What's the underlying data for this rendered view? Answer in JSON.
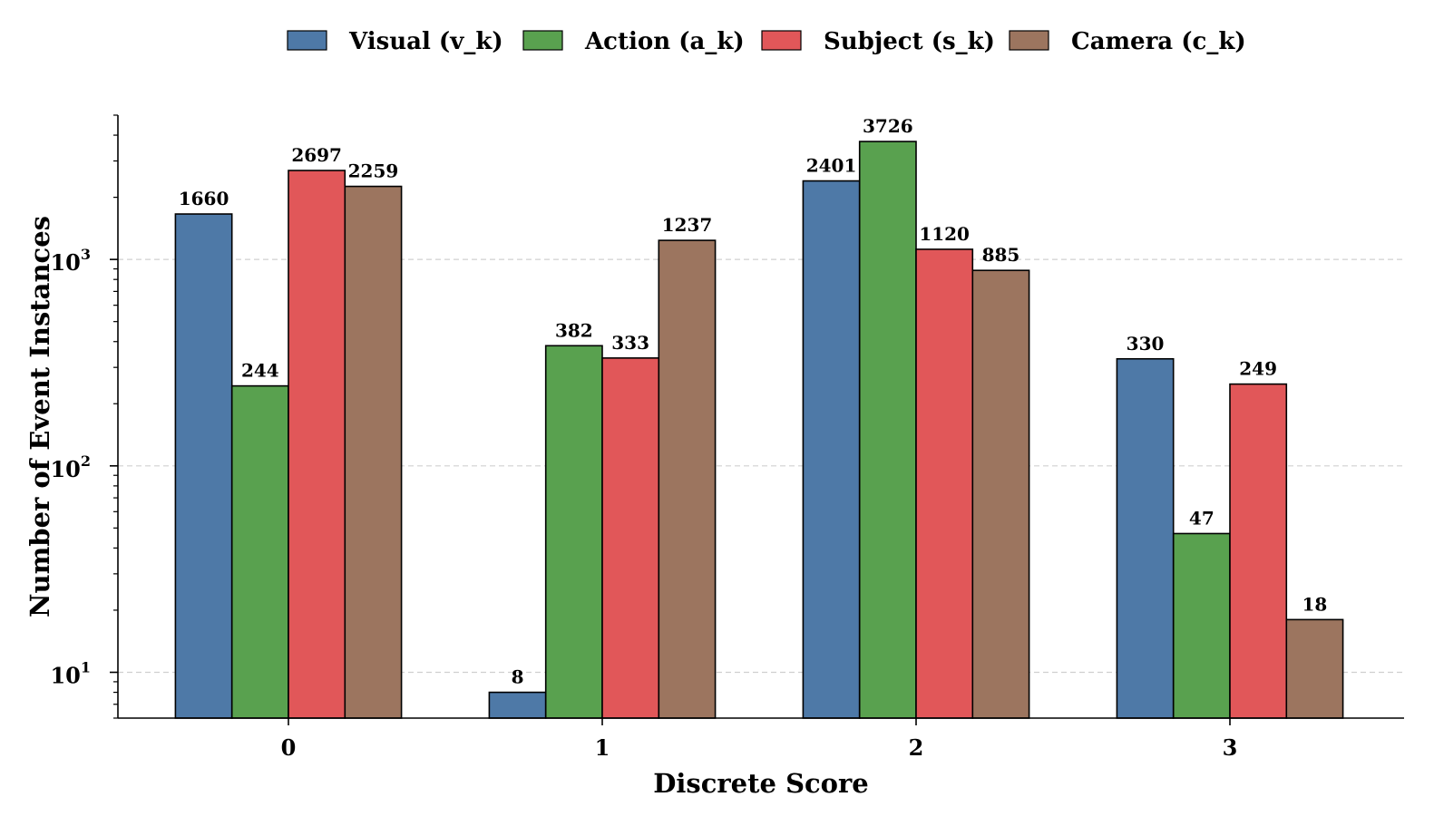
{
  "chart_data": {
    "type": "bar",
    "title": "",
    "xlabel": "Discrete Score",
    "ylabel": "Number of Event Instances",
    "y_scale": "log",
    "ylim": [
      6,
      5000
    ],
    "y_ticks": [
      10,
      100,
      1000
    ],
    "y_tick_labels": [
      {
        "base": "10",
        "exp": "1"
      },
      {
        "base": "10",
        "exp": "2"
      },
      {
        "base": "10",
        "exp": "3"
      }
    ],
    "grid": "horizontal dashed at major ticks",
    "legend_position": "top-center",
    "categories": [
      "0",
      "1",
      "2",
      "3"
    ],
    "series": [
      {
        "name": "Visual (v_k)",
        "color": "#4e79a7",
        "values": [
          1660,
          8,
          2401,
          330
        ]
      },
      {
        "name": "Action (a_k)",
        "color": "#59a14f",
        "values": [
          244,
          382,
          3726,
          47
        ]
      },
      {
        "name": "Subject (s_k)",
        "color": "#e15759",
        "values": [
          2697,
          333,
          1120,
          249
        ]
      },
      {
        "name": "Camera (c_k)",
        "color": "#9c755f",
        "values": [
          2259,
          1237,
          885,
          18
        ]
      }
    ]
  }
}
